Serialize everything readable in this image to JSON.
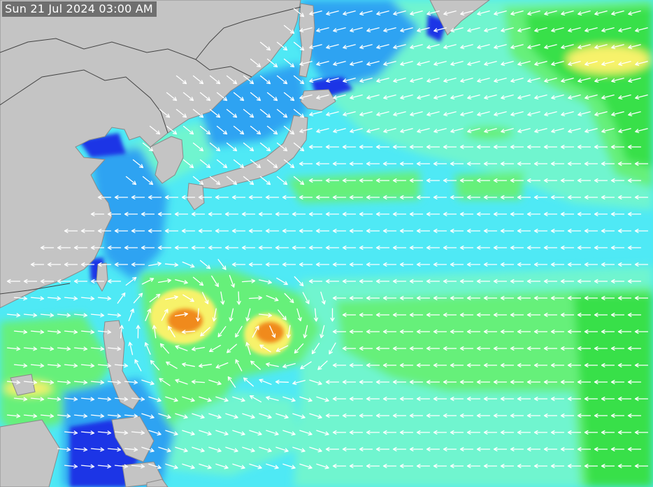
{
  "timestamp": "Sun 21 Jul 2024 03:00 AM",
  "colors": {
    "land": "#c4c4c4",
    "border": "#555555",
    "wave_cyan": "#4fe9f5",
    "wave_aqua": "#6ff5cf",
    "wave_light_green": "#66f07a",
    "wave_green": "#38e04a",
    "wave_blue": "#2ea3f2",
    "wave_dark_blue": "#1f35e6",
    "wave_yellow": "#f7f26a",
    "wave_orange": "#f08a1a",
    "arrow": "#ffffff"
  },
  "features": {
    "land": "Asian mainland, Korea, Japan, Taiwan, Philippines",
    "storms": [
      "storm-west",
      "storm-east"
    ],
    "arrow_field": "wind direction arrows"
  }
}
